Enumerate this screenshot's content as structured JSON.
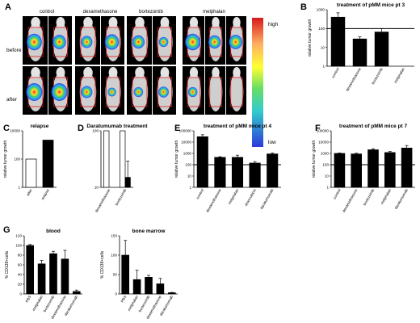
{
  "colors": {
    "bar": "#000000",
    "open_bar": "#ffffff",
    "mouse": "#cfcfcf",
    "bg_photo": "#000000",
    "roi": "#e01818"
  },
  "panel_a": {
    "letter": "A",
    "groups": [
      "control",
      "dexamethasone",
      "bortezomib",
      "melphalan"
    ],
    "row_labels": [
      "before",
      "after"
    ],
    "colorbar_high": "high",
    "colorbar_low": "low",
    "signals_before": [
      [
        0.9,
        0.7
      ],
      [
        0.5,
        0.8
      ],
      [
        0.6,
        0.3
      ],
      [
        0.9,
        0.6,
        0.7
      ]
    ],
    "signals_after": [
      [
        1.0,
        1.0
      ],
      [
        0.5,
        0.2
      ],
      [
        0.3,
        0.4
      ],
      [
        0.3,
        0.0,
        0.0
      ]
    ]
  },
  "chart_data": [
    {
      "id": "B",
      "letter": "B",
      "type": "bar",
      "scale": "log",
      "title": "treatment of pMM mice pt 3",
      "ylabel": "relative tumor growth",
      "categories": [
        "control",
        "dexamethasone",
        "bortezomib",
        "melphalan"
      ],
      "values": [
        400,
        28,
        65,
        1
      ],
      "errors": [
        280,
        8,
        35,
        0
      ],
      "ylim": [
        1,
        1000
      ],
      "yticks": [
        "1",
        "10",
        "100",
        "1000"
      ],
      "ref_line": 100
    },
    {
      "id": "C",
      "letter": "C",
      "type": "bar",
      "scale": "log",
      "title": "relapse",
      "ylabel": "relative tumor growth",
      "categories": [
        "after",
        "relapse"
      ],
      "values": [
        100,
        2200
      ],
      "open": [
        true,
        false
      ],
      "ylim": [
        1,
        10000
      ],
      "yticks": [
        "1",
        "100",
        "10000"
      ]
    },
    {
      "id": "D",
      "letter": "D",
      "type": "bar",
      "scale": "log",
      "title": "Daratumumab treatment",
      "ylabel": "",
      "categories": [
        "dexamethasone",
        "bortezomib"
      ],
      "pairs": [
        [
          100,
          1
        ],
        [
          100,
          15
        ]
      ],
      "pair_errors": [
        [
          0,
          0
        ],
        [
          0,
          14
        ]
      ],
      "ylim": [
        10,
        100
      ],
      "yticks": [
        "10",
        "100"
      ]
    },
    {
      "id": "E",
      "letter": "E",
      "type": "bar",
      "scale": "log",
      "title": "treatment of pMM mice pt 4",
      "ylabel": "relative tumor growth",
      "categories": [
        "control",
        "dexamethasone",
        "melphalan",
        "doxorubicin",
        "daratumumab"
      ],
      "values": [
        30000,
        450,
        450,
        140,
        900
      ],
      "errors": [
        15000,
        60,
        250,
        50,
        200
      ],
      "ylim": [
        1,
        100000
      ],
      "yticks": [
        "1",
        "10",
        "100",
        "1000",
        "10000",
        "100000"
      ],
      "ref_line": 100
    },
    {
      "id": "F",
      "letter": "F",
      "type": "bar",
      "scale": "log",
      "title": "treatment of pMM mice pt 7",
      "ylabel": "relative tumor growth",
      "categories": [
        "control",
        "dexamethasone",
        "bortezomib",
        "melphalan",
        "daratumumab"
      ],
      "values": [
        1000,
        900,
        2100,
        1200,
        3000
      ],
      "errors": [
        100,
        150,
        500,
        300,
        2000
      ],
      "ylim": [
        1,
        100000
      ],
      "yticks": [
        "1",
        "10",
        "100",
        "1000",
        "10000",
        "100000"
      ],
      "ref_line": 100
    },
    {
      "id": "G1",
      "letter": "G",
      "type": "bar",
      "scale": "linear",
      "title": "blood",
      "ylabel": "% CD138+cells",
      "categories": [
        "PBS",
        "melphalan",
        "bortezomib",
        "dexamethasone",
        "daratumumab"
      ],
      "values": [
        100,
        62,
        83,
        72,
        5
      ],
      "errors": [
        2,
        7,
        5,
        18,
        3
      ],
      "ylim": [
        0,
        120
      ],
      "yticks": [
        "0",
        "20",
        "40",
        "60",
        "80",
        "100",
        "120"
      ]
    },
    {
      "id": "G2",
      "letter": "",
      "type": "bar",
      "scale": "linear",
      "title": "bone marrow",
      "ylabel": "% CD138+cells",
      "categories": [
        "PBS",
        "melphalan",
        "bortezomib",
        "dexamethasone",
        "daratumumab"
      ],
      "values": [
        100,
        37,
        43,
        26,
        3
      ],
      "errors": [
        38,
        24,
        5,
        14,
        1
      ],
      "ylim": [
        0,
        150
      ],
      "yticks": [
        "0",
        "50",
        "100",
        "150"
      ]
    }
  ]
}
